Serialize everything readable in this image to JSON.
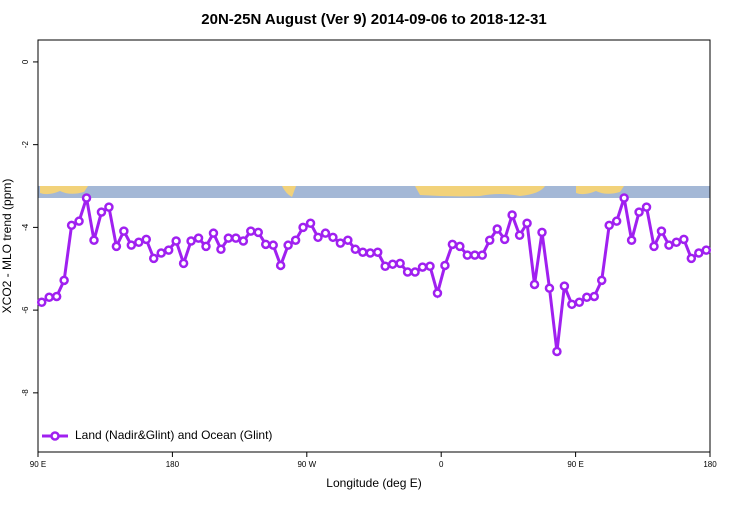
{
  "chart_data": {
    "type": "line",
    "title": "20N-25N August (Ver 9)   2014-09-06 to 2018-12-31",
    "x_label": "Longitude (deg E)",
    "y_label": "XCO2 - MLO trend (ppm)",
    "x": [
      92.5,
      97.5,
      102.5,
      107.5,
      112.5,
      117.5,
      122.5,
      127.5,
      132.5,
      137.5,
      142.5,
      147.5,
      152.5,
      157.5,
      162.5,
      167.5,
      172.5,
      177.5,
      182.5,
      187.5,
      192.5,
      197.5,
      202.5,
      207.5,
      212.5,
      217.5,
      222.5,
      227.5,
      232.5,
      237.5,
      242.5,
      247.5,
      252.5,
      257.5,
      262.5,
      267.5,
      272.5,
      277.5,
      282.5,
      287.5,
      292.5,
      297.5,
      302.5,
      307.5,
      312.5,
      317.5,
      322.5,
      327.5,
      332.5,
      337.5,
      342.5,
      347.5,
      352.5,
      357.5,
      362.5,
      367.5,
      372.5,
      377.5,
      382.5,
      387.5,
      392.5,
      397.5,
      402.5,
      407.5,
      412.5,
      417.5,
      422.5,
      427.5,
      432.5,
      437.5,
      442.5,
      447.5,
      452.5,
      457.5,
      462.5,
      467.5,
      472.5,
      477.5,
      482.5,
      487.5,
      492.5,
      497.5,
      502.5,
      507.5,
      512.5,
      517.5,
      522.5,
      527.5,
      532.5,
      537.5
    ],
    "series": [
      {
        "name": "Land (Nadir&Glint) and Ocean (Glint)",
        "color": "#a020f0",
        "values": [
          -5.81,
          -5.69,
          -5.67,
          -5.28,
          -3.95,
          -3.85,
          -3.29,
          -4.31,
          -3.63,
          -3.51,
          -4.46,
          -4.09,
          -4.43,
          -4.36,
          -4.29,
          -4.75,
          -4.62,
          -4.55,
          -4.33,
          -4.87,
          -4.33,
          -4.26,
          -4.46,
          -4.14,
          -4.53,
          -4.26,
          -4.26,
          -4.33,
          -4.09,
          -4.12,
          -4.41,
          -4.43,
          -4.92,
          -4.43,
          -4.31,
          -4.0,
          -3.9,
          -4.24,
          -4.14,
          -4.24,
          -4.38,
          -4.31,
          -4.53,
          -4.6,
          -4.62,
          -4.6,
          -4.94,
          -4.89,
          -4.87,
          -5.08,
          -5.08,
          -4.96,
          -4.94,
          -5.59,
          -4.92,
          -4.41,
          -4.46,
          -4.67,
          -4.67,
          -4.67,
          -4.31,
          -4.04,
          -4.29,
          -3.7,
          -4.19,
          -3.9,
          -5.38,
          -4.12,
          -5.47,
          -7.0,
          -5.42,
          -5.86,
          -5.81,
          -5.69,
          -5.67,
          -5.28,
          -3.95,
          -3.85,
          -3.29,
          -4.31,
          -3.63,
          -3.51,
          -4.46,
          -4.09,
          -4.43,
          -4.36,
          -4.29,
          -4.75,
          -4.62,
          -4.55
        ]
      }
    ],
    "xlim": [
      90,
      540
    ],
    "xticks": [
      {
        "value": 90,
        "label": "90 E"
      },
      180,
      {
        "value": 270,
        "label": "90 W"
      },
      {
        "value": 360,
        "label": "0"
      },
      {
        "value": 450,
        "label": "90 E"
      },
      {
        "value": 540,
        "label": "180"
      }
    ],
    "ylim": [
      -9.43,
      0.53
    ],
    "yticks": [
      0,
      -2,
      -4,
      -6,
      -8
    ],
    "legend": "bottom-left"
  }
}
